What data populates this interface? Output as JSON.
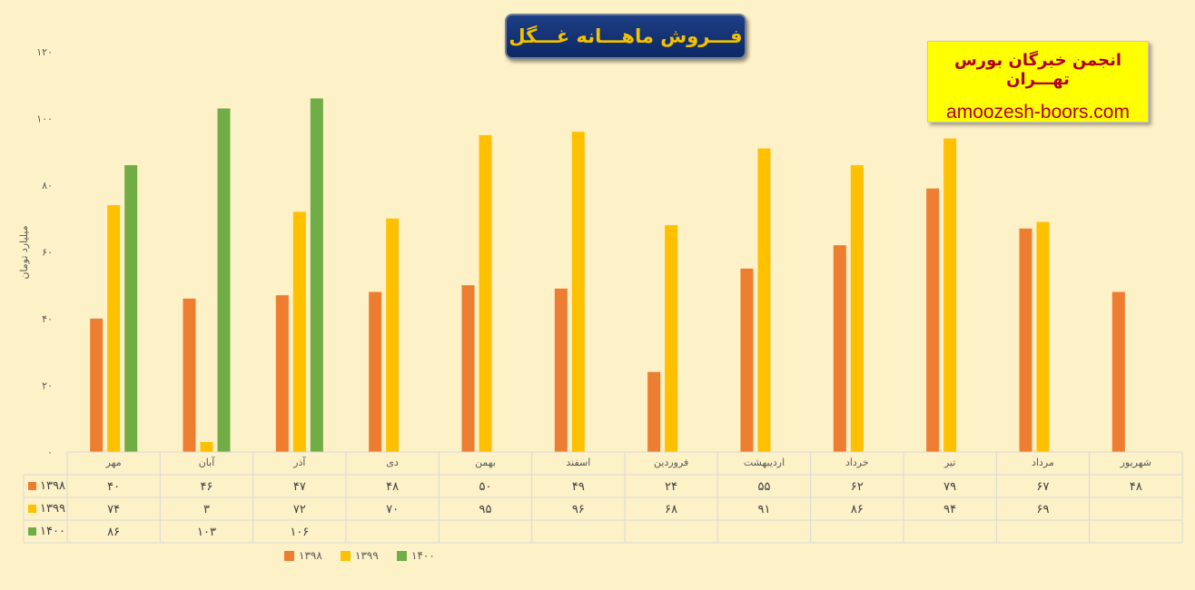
{
  "header": {
    "title": "فـــروش ماهـــانه غـــگل",
    "brand_name": "انجمن خبرگان بورس تهـــران",
    "brand_url": "amoozesh-boors.com"
  },
  "chart_data": {
    "type": "bar",
    "title": "فـــروش ماهـــانه غـــگل",
    "ylabel": "میلیارد تومان",
    "ylim": [
      0,
      120
    ],
    "yticks": [
      "۰",
      "۲۰",
      "۴۰",
      "۶۰",
      "۸۰",
      "۱۰۰",
      "۱۲۰"
    ],
    "ytick_values": [
      0,
      20,
      40,
      60,
      80,
      100,
      120
    ],
    "categories": [
      "مهر",
      "آبان",
      "آذر",
      "دی",
      "بهمن",
      "اسفند",
      "فروردین",
      "اردیبهشت",
      "خرداد",
      "تیر",
      "مرداد",
      "شهریور"
    ],
    "series": [
      {
        "name": "۱۳۹۸",
        "color": "#ed7d31",
        "values": [
          40,
          46,
          47,
          48,
          50,
          49,
          24,
          55,
          62,
          79,
          67,
          48
        ],
        "labels": [
          "۴۰",
          "۴۶",
          "۴۷",
          "۴۸",
          "۵۰",
          "۴۹",
          "۲۴",
          "۵۵",
          "۶۲",
          "۷۹",
          "۶۷",
          "۴۸"
        ]
      },
      {
        "name": "۱۳۹۹",
        "color": "#ffc000",
        "values": [
          74,
          3,
          72,
          70,
          95,
          96,
          68,
          91,
          86,
          94,
          69,
          null
        ],
        "labels": [
          "۷۴",
          "۳",
          "۷۲",
          "۷۰",
          "۹۵",
          "۹۶",
          "۶۸",
          "۹۱",
          "۸۶",
          "۹۴",
          "۶۹",
          ""
        ]
      },
      {
        "name": "۱۴۰۰",
        "color": "#70ad47",
        "values": [
          86,
          103,
          106,
          null,
          null,
          null,
          null,
          null,
          null,
          null,
          null,
          null
        ],
        "labels": [
          "۸۶",
          "۱۰۳",
          "۱۰۶",
          "",
          "",
          "",
          "",
          "",
          "",
          "",
          "",
          ""
        ]
      }
    ],
    "grid": false,
    "legend_position": "bottom",
    "data_table": true
  }
}
